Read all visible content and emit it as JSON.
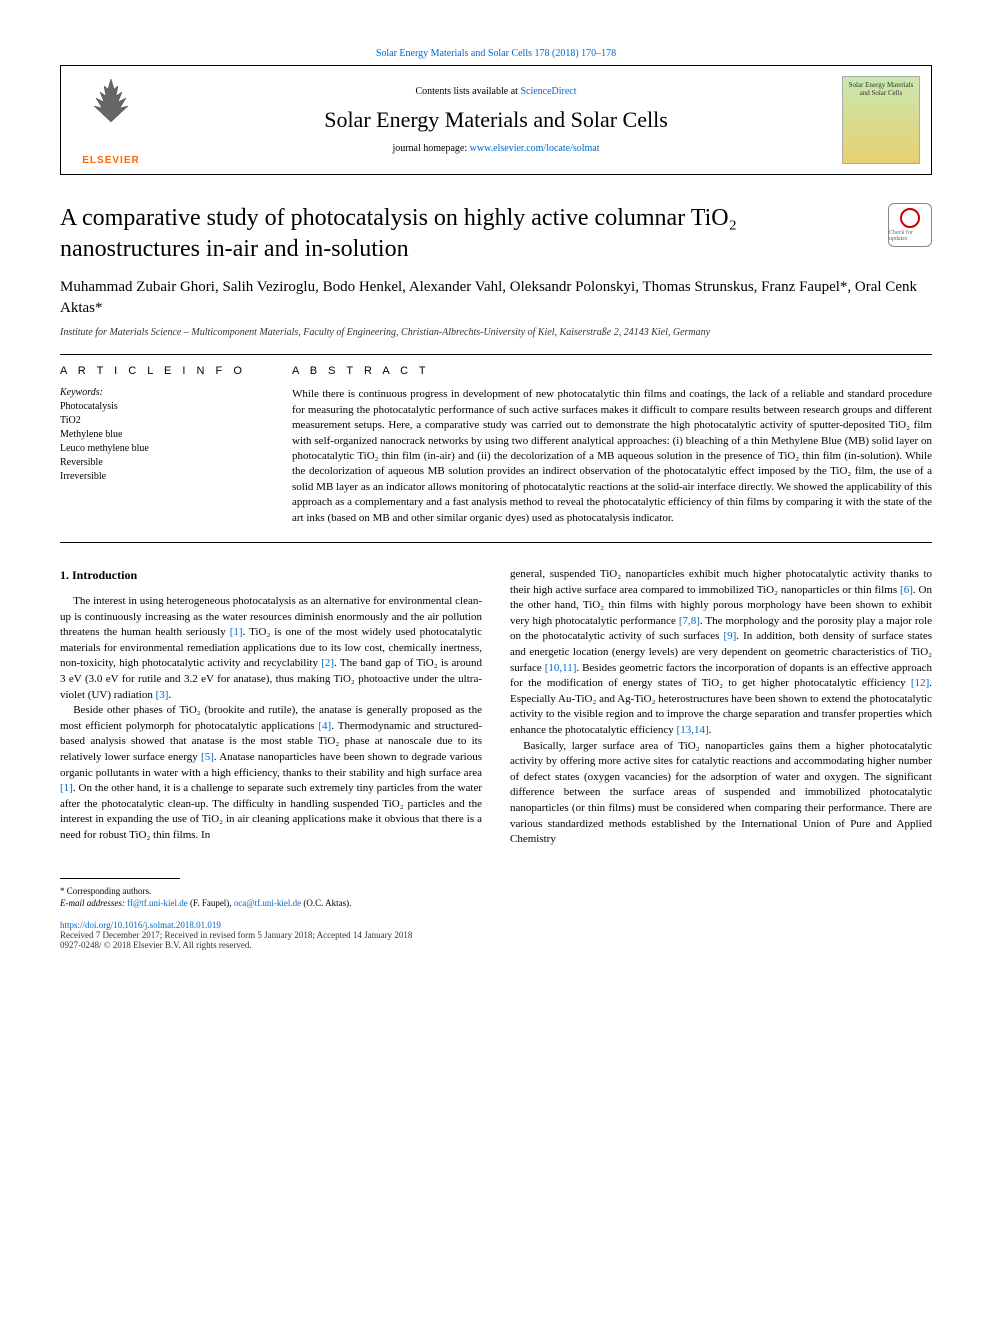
{
  "top_link": "Solar Energy Materials and Solar Cells 178 (2018) 170–178",
  "header": {
    "contents_prefix": "Contents lists available at ",
    "contents_link": "ScienceDirect",
    "journal_name": "Solar Energy Materials and Solar Cells",
    "homepage_prefix": "journal homepage: ",
    "homepage_url": "www.elsevier.com/locate/solmat",
    "publisher": "ELSEVIER",
    "cover_text": "Solar Energy Materials and Solar Cells"
  },
  "crossmark": {
    "label": "Check for updates"
  },
  "title": "A comparative study of photocatalysis on highly active columnar TiO₂ nanostructures in-air and in-solution",
  "authors": "Muhammad Zubair Ghori, Salih Veziroglu, Bodo Henkel, Alexander Vahl, Oleksandr Polonskyi, Thomas Strunskus, Franz Faupel*, Oral Cenk Aktas*",
  "affiliation": "Institute for Materials Science – Multicomponent Materials, Faculty of Engineering, Christian-Albrechts-University of Kiel, Kaiserstraße 2, 24143 Kiel, Germany",
  "sections": {
    "info_head": "A R T I C L E  I N F O",
    "abs_head": "A B S T R A C T",
    "keywords_label": "Keywords:",
    "keywords": [
      "Photocatalysis",
      "TiO2",
      "Methylene blue",
      "Leuco methylene blue",
      "Reversible",
      "Irreversible"
    ],
    "abstract": "While there is continuous progress in development of new photocatalytic thin films and coatings, the lack of a reliable and standard procedure for measuring the photocatalytic performance of such active surfaces makes it difficult to compare results between research groups and different measurement setups. Here, a comparative study was carried out to demonstrate the high photocatalytic activity of sputter-deposited TiO₂ film with self-organized nanocrack networks by using two different analytical approaches: (i) bleaching of a thin Methylene Blue (MB) solid layer on photocatalytic TiO₂ thin film (in-air) and (ii) the decolorization of a MB aqueous solution in the presence of TiO₂ thin film (in-solution). While the decolorization of aqueous MB solution provides an indirect observation of the photocatalytic effect imposed by the TiO₂ film, the use of a solid MB layer as an indicator allows monitoring of photocatalytic reactions at the solid-air interface directly. We showed the applicability of this approach as a complementary and a fast analysis method to reveal the photocatalytic efficiency of thin films by comparing it with the state of the art inks (based on MB and other similar organic dyes) used as photocatalysis indicator."
  },
  "intro": {
    "heading": "1. Introduction",
    "p1": "The interest in using heterogeneous photocatalysis as an alternative for environmental clean-up is continuously increasing as the water resources diminish enormously and the air pollution threatens the human health seriously [1]. TiO₂ is one of the most widely used photocatalytic materials for environmental remediation applications due to its low cost, chemically inertness, non-toxicity, high photocatalytic activity and recyclability [2]. The band gap of TiO₂ is around 3 eV (3.0 eV for rutile and 3.2 eV for anatase), thus making TiO₂ photoactive under the ultra-violet (UV) radiation [3].",
    "p2": "Beside other phases of TiO₂ (brookite and rutile), the anatase is generally proposed as the most efficient polymorph for photocatalytic applications [4]. Thermodynamic and structured-based analysis showed that anatase is the most stable TiO₂ phase at nanoscale due to its relatively lower surface energy [5]. Anatase nanoparticles have been shown to degrade various organic pollutants in water with a high efficiency, thanks to their stability and high surface area [1]. On the other hand, it is a challenge to separate such extremely tiny particles from the water after the photocatalytic clean-up. The difficulty in handling suspended TiO₂ particles and the interest in expanding the use of TiO₂ in air cleaning applications make it obvious that there is a need for robust TiO₂ thin films. In",
    "p3": "general, suspended TiO₂ nanoparticles exhibit much higher photocatalytic activity thanks to their high active surface area compared to immobilized TiO₂ nanoparticles or thin films [6]. On the other hand, TiO₂ thin films with highly porous morphology have been shown to exhibit very high photocatalytic performance [7,8]. The morphology and the porosity play a major role on the photocatalytic activity of such surfaces [9]. In addition, both density of surface states and energetic location (energy levels) are very dependent on geometric characteristics of TiO₂ surface [10,11]. Besides geometric factors the incorporation of dopants is an effective approach for the modification of energy states of TiO₂ to get higher photocatalytic efficiency [12]. Especially Au-TiO₂ and Ag-TiO₂ heterostructures have been shown to extend the photocatalytic activity to the visible region and to improve the charge separation and transfer properties which enhance the photocatalytic efficiency [13,14].",
    "p4": "Basically, larger surface area of TiO₂ nanoparticles gains them a higher photocatalytic activity by offering more active sites for catalytic reactions and accommodating higher number of defect states (oxygen vacancies) for the adsorption of water and oxygen. The significant difference between the surface areas of suspended and immobilized photocatalytic nanoparticles (or thin films) must be considered when comparing their performance. There are various standardized methods established by the International Union of Pure and Applied Chemistry"
  },
  "refs": {
    "r1": "[1]",
    "r2": "[2]",
    "r3": "[3]",
    "r4": "[4]",
    "r5": "[5]",
    "r6": "[6]",
    "r7": "[7,8]",
    "r9": "[9]",
    "r10": "[10,11]",
    "r12": "[12]",
    "r13": "[13,14]"
  },
  "footer": {
    "corr": "* Corresponding authors.",
    "email_label": "E-mail addresses: ",
    "email1": "ff@tf.uni-kiel.de",
    "email1_name": " (F. Faupel), ",
    "email2": "oca@tf.uni-kiel.de",
    "email2_name": " (O.C. Aktas).",
    "doi": "https://doi.org/10.1016/j.solmat.2018.01.019",
    "received": "Received 7 December 2017; Received in revised form 5 January 2018; Accepted 14 January 2018",
    "copyright": "0927-0248/ © 2018 Elsevier B.V. All rights reserved."
  },
  "colors": {
    "link": "#0066cc",
    "elsevier_orange": "#ff6600",
    "text": "#000000",
    "bg": "#ffffff"
  }
}
